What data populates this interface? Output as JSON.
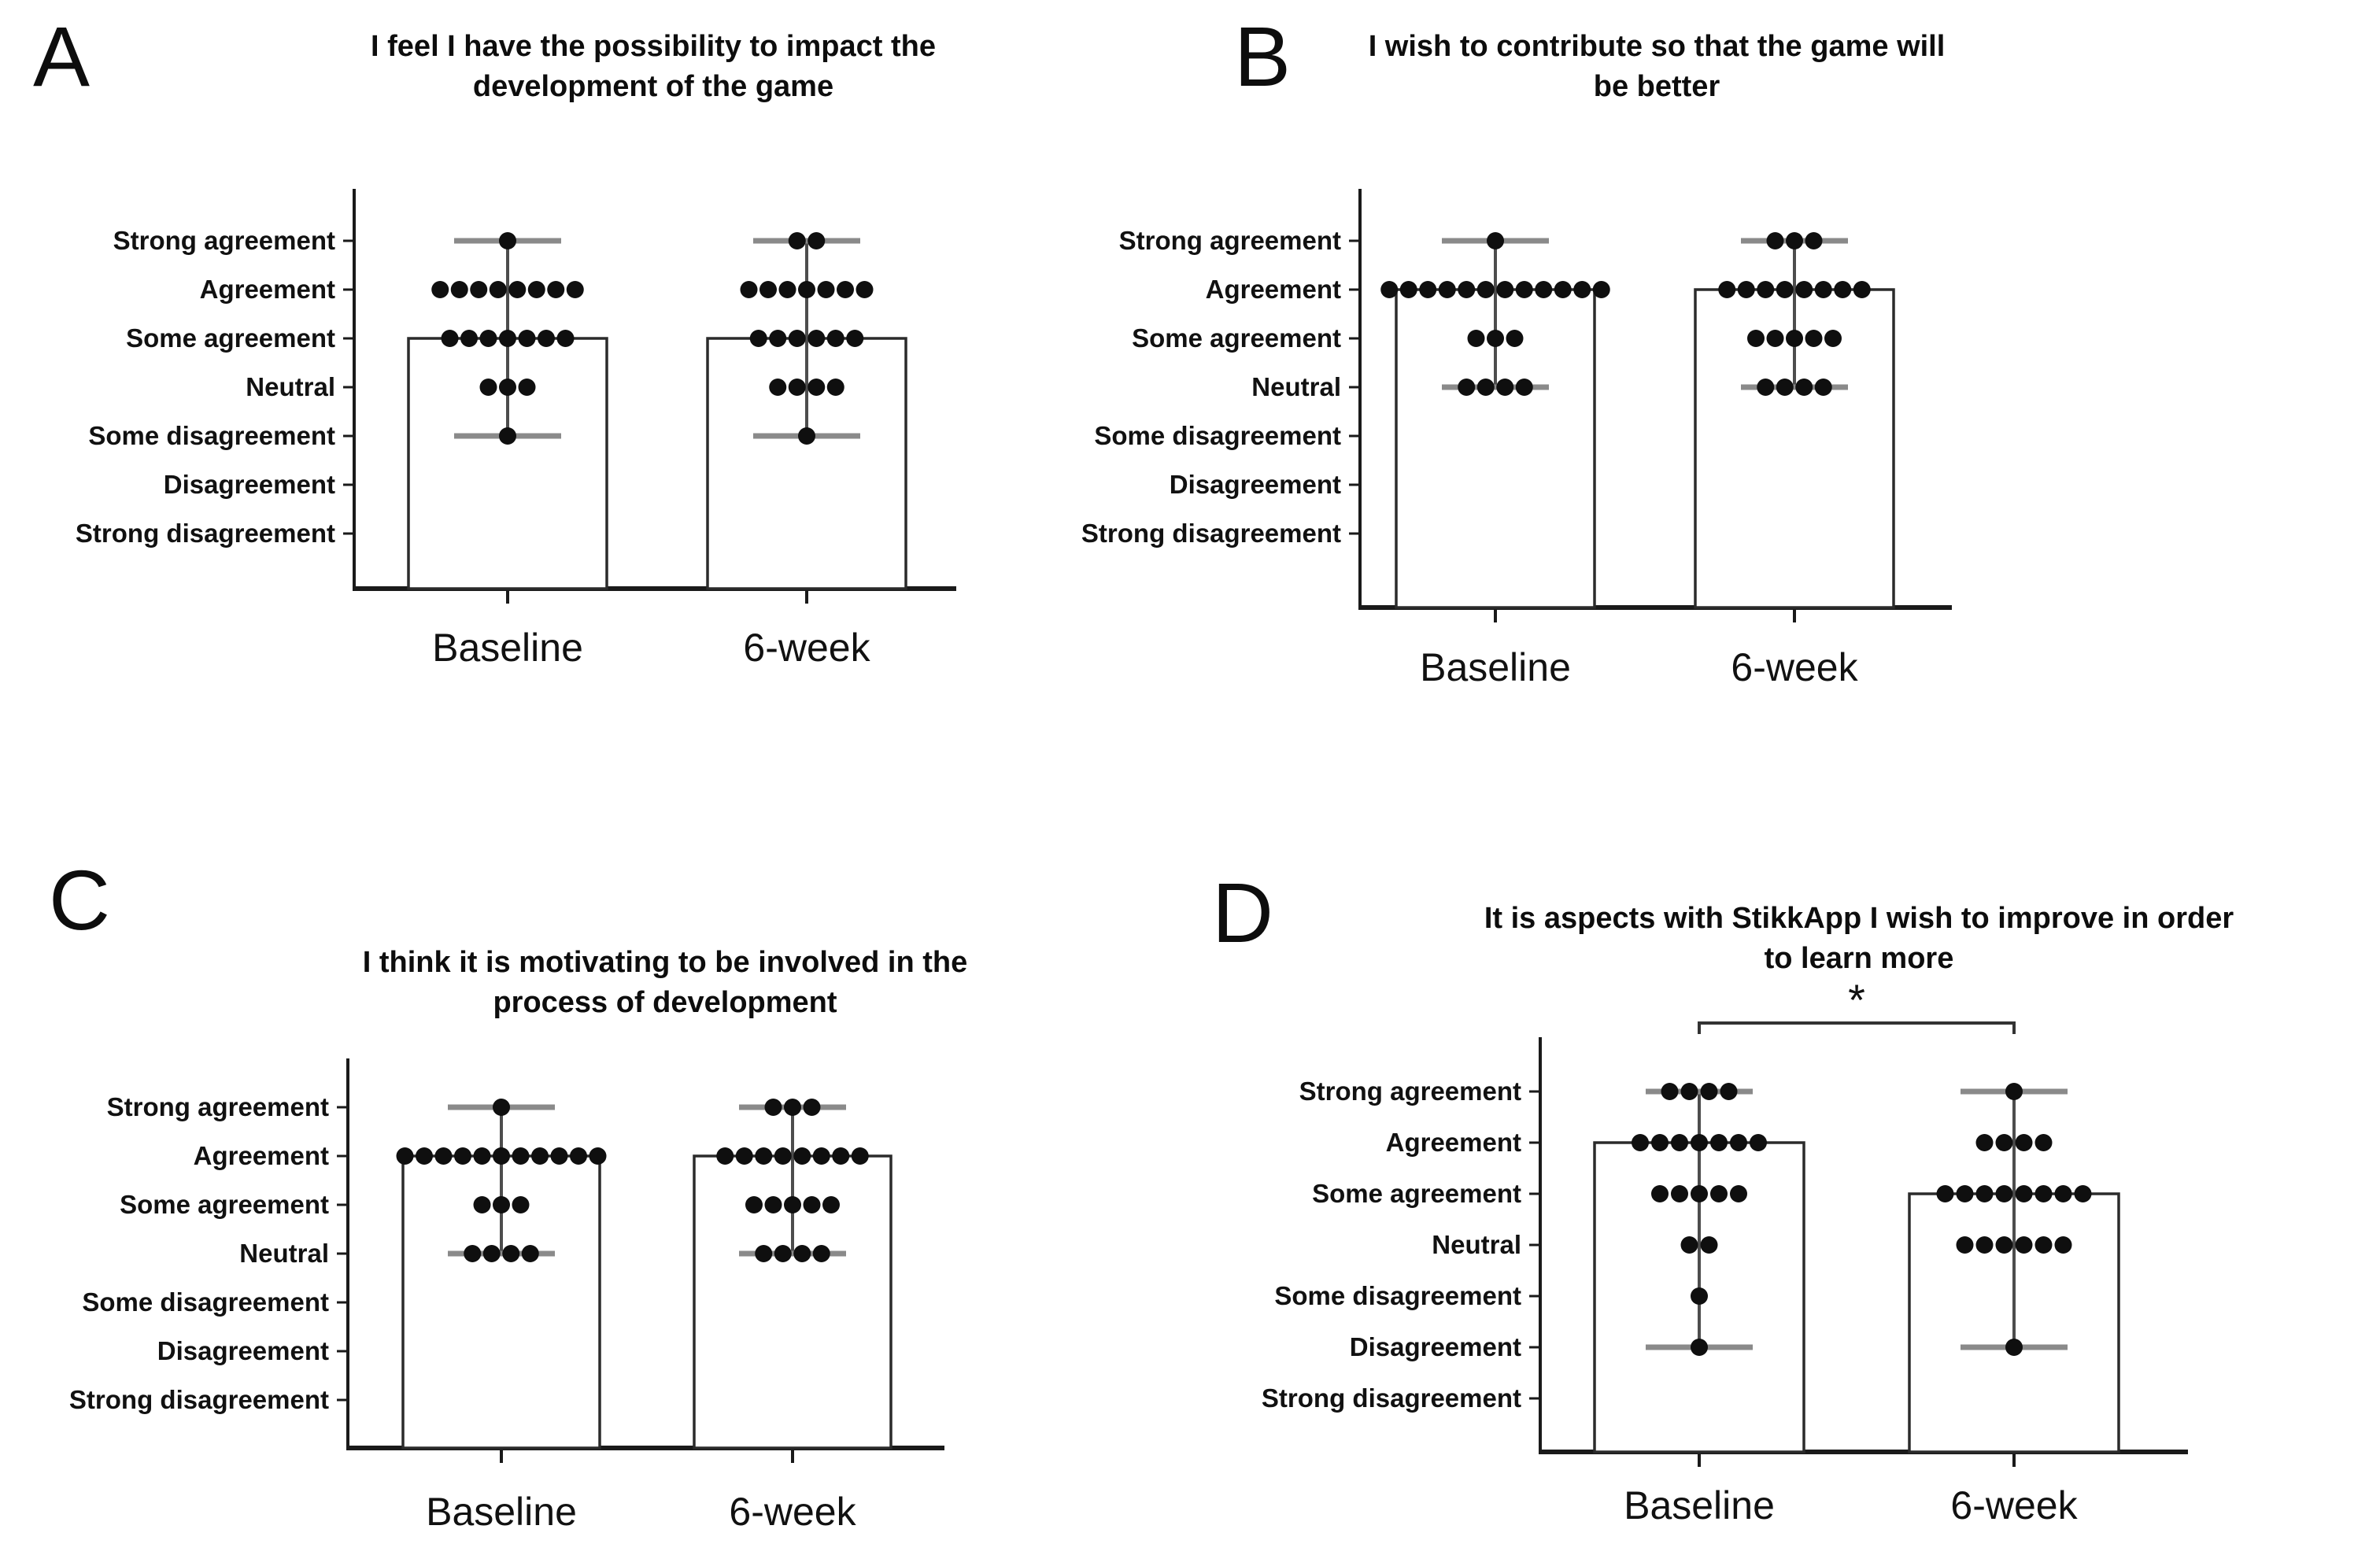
{
  "figure": {
    "background": "#ffffff",
    "colors": {
      "dot": "#0f0f0f",
      "whisker_line": "#4d4d4d",
      "whisker_cap": "#8a8a8a",
      "bar_outline": "#2b2b2b",
      "bar_fill": "#ffffff",
      "axis": "#1a1a1a",
      "text": "#111111"
    }
  },
  "chart_data": {
    "type": "bar",
    "subtype": "likert-dot-plot-with-median-bars-and-range-whiskers",
    "categories": [
      "Strong agreement",
      "Agreement",
      "Some agreement",
      "Neutral",
      "Some disagreement",
      "Disagreement",
      "Strong disagreement"
    ],
    "x_categories": [
      "Baseline",
      "6-week"
    ],
    "panels": [
      {
        "panel_label": "A",
        "title": "I feel I have the possibility to impact the development of the game",
        "title_lines": [
          "I feel I have the possibility to impact the",
          "development of the game"
        ],
        "groups": [
          {
            "label": "Baseline",
            "bar_top": "Some agreement",
            "whisker_top": "Strong agreement",
            "whisker_bottom": "Some disagreement",
            "dot_counts": {
              "Strong agreement": 1,
              "Agreement": 8,
              "Some agreement": 7,
              "Neutral": 3,
              "Some disagreement": 1
            }
          },
          {
            "label": "6-week",
            "bar_top": "Some agreement",
            "whisker_top": "Strong agreement",
            "whisker_bottom": "Some disagreement",
            "dot_counts": {
              "Strong agreement": 2,
              "Agreement": 7,
              "Some agreement": 6,
              "Neutral": 4,
              "Some disagreement": 1
            }
          }
        ],
        "significance": null
      },
      {
        "panel_label": "B",
        "title": "I wish to contribute so that the game will be better",
        "title_lines": [
          "I wish to contribute so that the game will",
          "be better"
        ],
        "groups": [
          {
            "label": "Baseline",
            "bar_top": "Agreement",
            "whisker_top": "Strong agreement",
            "whisker_bottom": "Neutral",
            "dot_counts": {
              "Strong agreement": 1,
              "Agreement": 12,
              "Some agreement": 3,
              "Neutral": 4
            }
          },
          {
            "label": "6-week",
            "bar_top": "Agreement",
            "whisker_top": "Strong agreement",
            "whisker_bottom": "Neutral",
            "dot_counts": {
              "Strong agreement": 3,
              "Agreement": 8,
              "Some agreement": 5,
              "Neutral": 4
            }
          }
        ],
        "significance": null
      },
      {
        "panel_label": "C",
        "title": "I think it is motivating to be involved in the process of development",
        "title_lines": [
          "I think it is motivating to be involved in the",
          "process of development"
        ],
        "groups": [
          {
            "label": "Baseline",
            "bar_top": "Agreement",
            "whisker_top": "Strong agreement",
            "whisker_bottom": "Neutral",
            "dot_counts": {
              "Strong agreement": 1,
              "Agreement": 11,
              "Some agreement": 3,
              "Neutral": 4
            }
          },
          {
            "label": "6-week",
            "bar_top": "Agreement",
            "whisker_top": "Strong agreement",
            "whisker_bottom": "Neutral",
            "dot_counts": {
              "Strong agreement": 3,
              "Agreement": 8,
              "Some agreement": 5,
              "Neutral": 4
            }
          }
        ],
        "significance": null
      },
      {
        "panel_label": "D",
        "title": "It is aspects with StikkApp I wish to improve in order to learn more",
        "title_lines": [
          "It is aspects with StikkApp I wish to improve in order",
          "to learn more"
        ],
        "groups": [
          {
            "label": "Baseline",
            "bar_top": "Agreement",
            "whisker_top": "Strong agreement",
            "whisker_bottom": "Disagreement",
            "dot_counts": {
              "Strong agreement": 4,
              "Agreement": 7,
              "Some agreement": 5,
              "Neutral": 2,
              "Some disagreement": 1,
              "Disagreement": 1
            }
          },
          {
            "label": "6-week",
            "bar_top": "Some agreement",
            "whisker_top": "Strong agreement",
            "whisker_bottom": "Disagreement",
            "dot_counts": {
              "Strong agreement": 1,
              "Agreement": 4,
              "Some agreement": 8,
              "Neutral": 6,
              "Disagreement": 1
            }
          }
        ],
        "significance": {
          "label": "*",
          "between": [
            "Baseline",
            "6-week"
          ]
        }
      }
    ]
  }
}
